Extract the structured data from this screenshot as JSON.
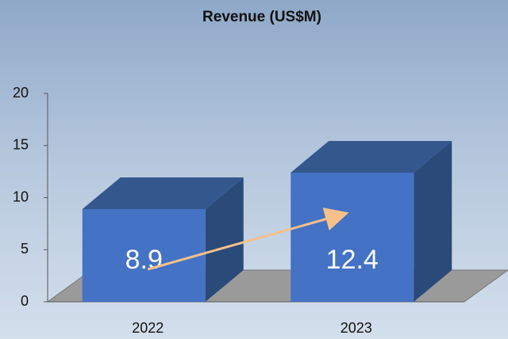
{
  "chart_data": {
    "type": "bar3d",
    "title": "Revenue (US$M)",
    "categories": [
      "2022",
      "2023"
    ],
    "values": [
      8.9,
      12.4
    ],
    "color": "#4472c4",
    "ylim": [
      0,
      20
    ],
    "yticks": [
      0,
      5,
      10,
      15,
      20
    ]
  }
}
